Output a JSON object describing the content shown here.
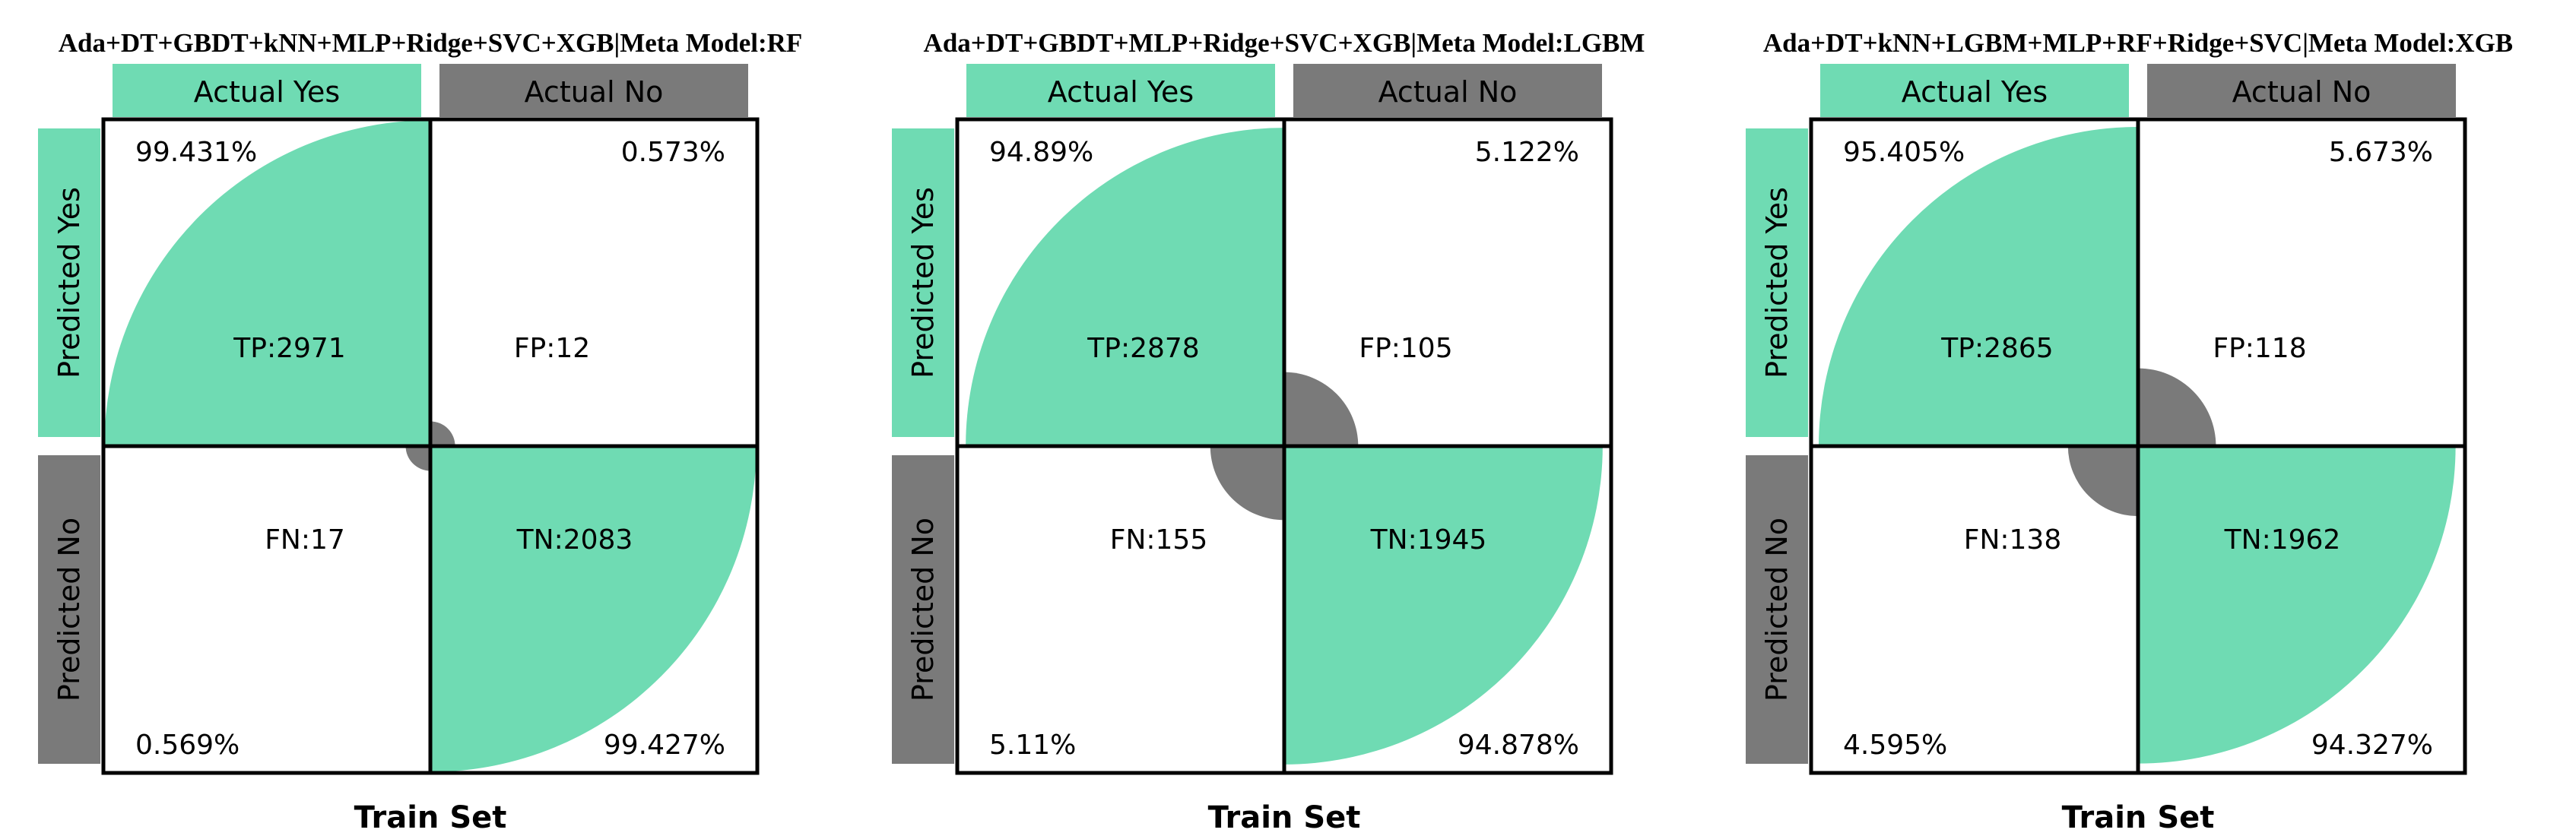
{
  "colors": {
    "positive": "#6fdbb3",
    "negative": "#7a7a7a",
    "border": "#000000",
    "background": "#ffffff"
  },
  "labels": {
    "actual_yes": "Actual Yes",
    "actual_no": "Actual No",
    "predicted_yes": "Predicted Yes",
    "predicted_no": "Predicted No"
  },
  "chart_data": [
    {
      "type": "confusion-matrix",
      "title": "Ada+DT+GBDT+kNN+MLP+Ridge+SVC+XGB|Meta Model:RF",
      "xlabel": "Train Set",
      "cells": {
        "tp": {
          "label": "TP:2971",
          "count": 2971,
          "pct_text": "99.431%",
          "pct": 99.431
        },
        "fp": {
          "label": "FP:12",
          "count": 12,
          "pct_text": "0.573%",
          "pct": 0.573
        },
        "fn": {
          "label": "FN:17",
          "count": 17,
          "pct_text": "0.569%",
          "pct": 0.569
        },
        "tn": {
          "label": "TN:2083",
          "count": 2083,
          "pct_text": "99.427%",
          "pct": 99.427
        }
      }
    },
    {
      "type": "confusion-matrix",
      "title": "Ada+DT+GBDT+MLP+Ridge+SVC+XGB|Meta Model:LGBM",
      "xlabel": "Train Set",
      "cells": {
        "tp": {
          "label": "TP:2878",
          "count": 2878,
          "pct_text": "94.89%",
          "pct": 94.89
        },
        "fp": {
          "label": "FP:105",
          "count": 105,
          "pct_text": "5.122%",
          "pct": 5.122
        },
        "fn": {
          "label": "FN:155",
          "count": 155,
          "pct_text": "5.11%",
          "pct": 5.11
        },
        "tn": {
          "label": "TN:1945",
          "count": 1945,
          "pct_text": "94.878%",
          "pct": 94.878
        }
      }
    },
    {
      "type": "confusion-matrix",
      "title": "Ada+DT+kNN+LGBM+MLP+RF+Ridge+SVC|Meta Model:XGB",
      "xlabel": "Train Set",
      "cells": {
        "tp": {
          "label": "TP:2865",
          "count": 2865,
          "pct_text": "95.405%",
          "pct": 95.405
        },
        "fp": {
          "label": "FP:118",
          "count": 118,
          "pct_text": "5.673%",
          "pct": 5.673
        },
        "fn": {
          "label": "FN:138",
          "count": 138,
          "pct_text": "4.595%",
          "pct": 4.595
        },
        "tn": {
          "label": "TN:1962",
          "count": 1962,
          "pct_text": "94.327%",
          "pct": 94.327
        }
      }
    }
  ]
}
